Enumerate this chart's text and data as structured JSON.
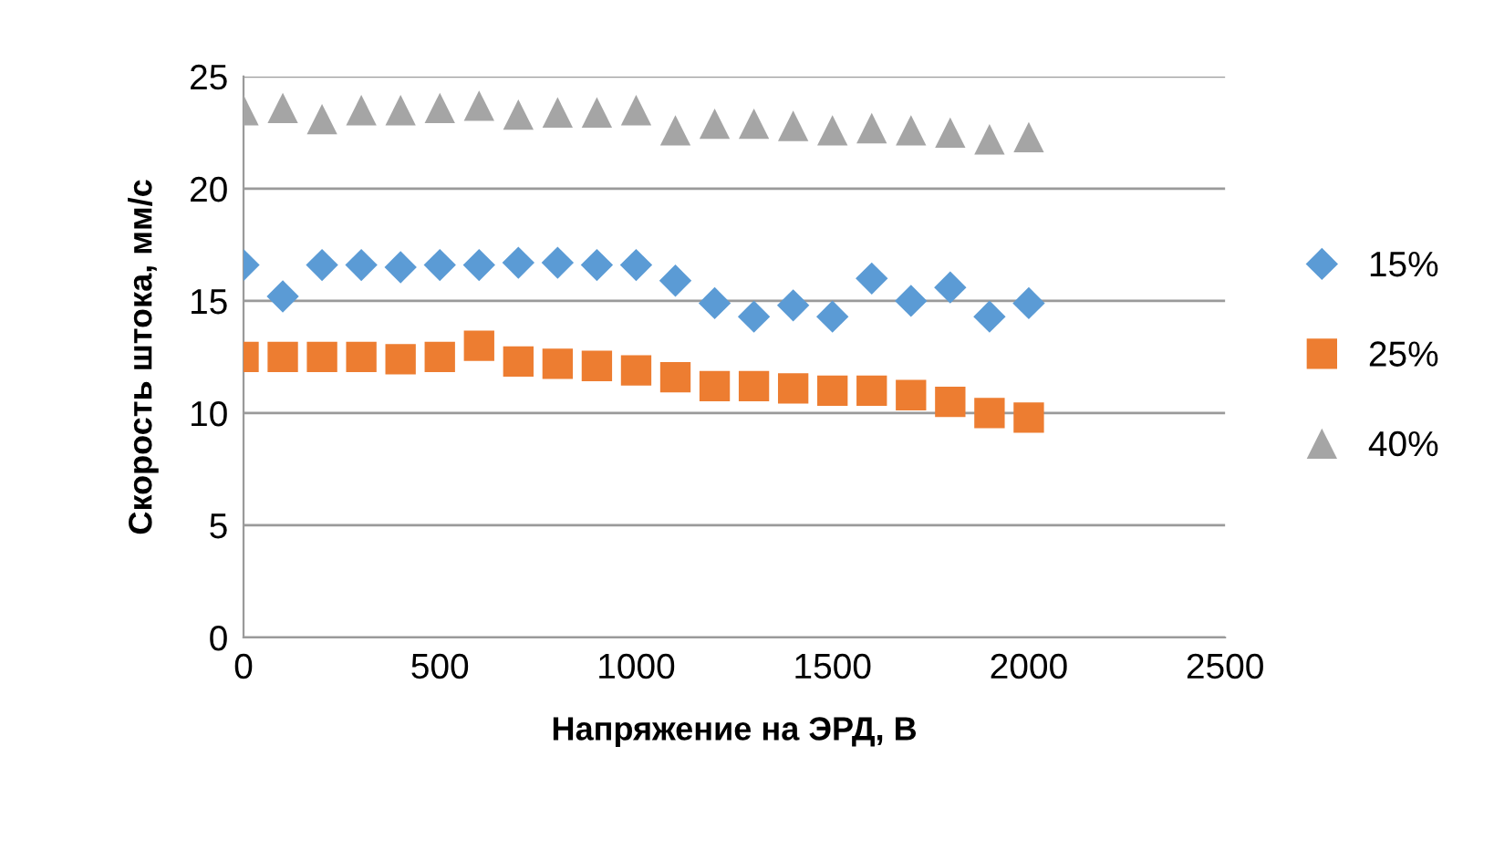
{
  "chart_data": {
    "type": "scatter",
    "xlabel": "Напряжение на ЭРД, В",
    "ylabel": "Скорость штока, мм/с",
    "x": [
      0,
      100,
      200,
      300,
      400,
      500,
      600,
      700,
      800,
      900,
      1000,
      1100,
      1200,
      1300,
      1400,
      1500,
      1600,
      1700,
      1800,
      1900,
      2000
    ],
    "series": [
      {
        "name": "15%",
        "color": "#5b9bd5",
        "marker": "diamond",
        "values": [
          16.6,
          15.2,
          16.6,
          16.6,
          16.5,
          16.6,
          16.6,
          16.7,
          16.7,
          16.6,
          16.6,
          15.9,
          14.9,
          14.3,
          14.8,
          14.3,
          16.0,
          15.0,
          15.6,
          14.3,
          14.9
        ]
      },
      {
        "name": "25%",
        "color": "#ed7d31",
        "marker": "square",
        "values": [
          12.5,
          12.5,
          12.5,
          12.5,
          12.4,
          12.5,
          13.0,
          12.3,
          12.2,
          12.1,
          11.9,
          11.6,
          11.2,
          11.2,
          11.1,
          11.0,
          11.0,
          10.8,
          10.5,
          10.0,
          9.8
        ]
      },
      {
        "name": "40%",
        "color": "#a5a5a5",
        "marker": "triangle",
        "values": [
          23.5,
          23.6,
          23.1,
          23.5,
          23.5,
          23.6,
          23.7,
          23.3,
          23.4,
          23.4,
          23.5,
          22.6,
          22.9,
          22.9,
          22.8,
          22.6,
          22.7,
          22.6,
          22.5,
          22.2,
          22.3
        ]
      }
    ],
    "xlim": [
      0,
      2500
    ],
    "xticks": [
      0,
      500,
      1000,
      1500,
      2000,
      2500
    ],
    "ylim": [
      0,
      25
    ],
    "yticks": [
      0,
      5,
      10,
      15,
      20,
      25
    ],
    "grid": "y",
    "legend": "right"
  }
}
